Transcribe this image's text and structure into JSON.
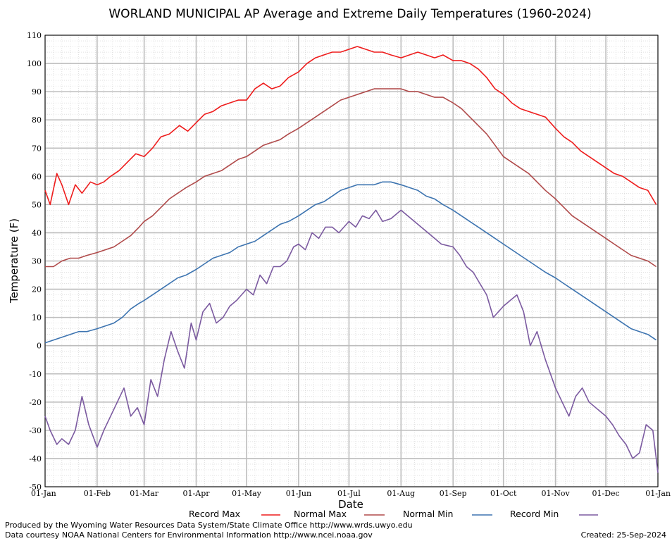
{
  "chart_data": {
    "type": "line",
    "title": "WORLAND MUNICIPAL AP Average and Extreme Daily Temperatures (1960-2024)",
    "xlabel": "Date",
    "ylabel": "Temperature (F)",
    "ylim": [
      -50,
      110
    ],
    "yticks": [
      110,
      100,
      90,
      80,
      70,
      60,
      50,
      40,
      30,
      20,
      10,
      0,
      -10,
      -20,
      -30,
      -40,
      -50
    ],
    "xlim": [
      1,
      366
    ],
    "x_tick_labels": [
      "01-Jan",
      "01-Feb",
      "01-Mar",
      "01-Apr",
      "01-May",
      "01-Jun",
      "01-Jul",
      "01-Aug",
      "01-Sep",
      "01-Oct",
      "01-Nov",
      "01-Dec",
      "01-Jan"
    ],
    "x_tick_days": [
      1,
      32,
      60,
      91,
      121,
      152,
      182,
      213,
      244,
      274,
      305,
      335,
      366
    ],
    "grid": true,
    "legend_position": "bottom",
    "colors": {
      "record_max": "#ee1c1c",
      "normal_max": "#b04a4a",
      "normal_min": "#3d74b0",
      "record_min": "#7b5aa0",
      "grid_major": "#bdbdbd",
      "grid_minor": "#cfcfcf"
    },
    "series": [
      {
        "name": "Record Max",
        "color": "#ee1c1c",
        "x": [
          1,
          4,
          8,
          11,
          15,
          19,
          23,
          28,
          32,
          36,
          40,
          45,
          50,
          55,
          60,
          65,
          70,
          75,
          81,
          86,
          91,
          96,
          101,
          106,
          111,
          116,
          121,
          126,
          131,
          136,
          141,
          146,
          152,
          157,
          162,
          167,
          172,
          177,
          182,
          187,
          192,
          197,
          202,
          207,
          213,
          218,
          223,
          228,
          233,
          238,
          244,
          249,
          254,
          259,
          264,
          269,
          274,
          279,
          284,
          289,
          294,
          299,
          305,
          310,
          315,
          320,
          325,
          330,
          335,
          340,
          345,
          350,
          355,
          360,
          365
        ],
        "values": [
          55,
          50,
          61,
          57,
          50,
          57,
          54,
          58,
          57,
          58,
          60,
          62,
          65,
          68,
          67,
          70,
          74,
          75,
          78,
          76,
          79,
          82,
          83,
          85,
          86,
          87,
          87,
          91,
          93,
          91,
          92,
          95,
          97,
          100,
          102,
          103,
          104,
          104,
          105,
          106,
          105,
          104,
          104,
          103,
          102,
          103,
          104,
          103,
          102,
          103,
          101,
          101,
          100,
          98,
          95,
          91,
          89,
          86,
          84,
          83,
          82,
          81,
          77,
          74,
          72,
          69,
          67,
          65,
          63,
          61,
          60,
          58,
          56,
          55,
          50
        ]
      },
      {
        "name": "Normal Max",
        "color": "#b04a4a",
        "x": [
          1,
          6,
          11,
          16,
          21,
          26,
          32,
          37,
          42,
          47,
          52,
          57,
          60,
          65,
          70,
          75,
          80,
          85,
          91,
          96,
          101,
          106,
          111,
          116,
          121,
          126,
          131,
          136,
          141,
          146,
          152,
          157,
          162,
          167,
          172,
          177,
          182,
          187,
          192,
          197,
          202,
          207,
          213,
          218,
          223,
          228,
          233,
          238,
          244,
          249,
          254,
          259,
          264,
          269,
          274,
          279,
          284,
          289,
          294,
          299,
          305,
          310,
          315,
          320,
          325,
          330,
          335,
          340,
          345,
          350,
          355,
          360,
          365
        ],
        "values": [
          28,
          28,
          30,
          31,
          31,
          32,
          33,
          34,
          35,
          37,
          39,
          42,
          44,
          46,
          49,
          52,
          54,
          56,
          58,
          60,
          61,
          62,
          64,
          66,
          67,
          69,
          71,
          72,
          73,
          75,
          77,
          79,
          81,
          83,
          85,
          87,
          88,
          89,
          90,
          91,
          91,
          91,
          91,
          90,
          90,
          89,
          88,
          88,
          86,
          84,
          81,
          78,
          75,
          71,
          67,
          65,
          63,
          61,
          58,
          55,
          52,
          49,
          46,
          44,
          42,
          40,
          38,
          36,
          34,
          32,
          31,
          30,
          28
        ]
      },
      {
        "name": "Normal Min",
        "color": "#3d74b0",
        "x": [
          1,
          6,
          11,
          16,
          21,
          26,
          32,
          37,
          42,
          47,
          52,
          57,
          60,
          65,
          70,
          75,
          80,
          85,
          91,
          96,
          101,
          106,
          111,
          116,
          121,
          126,
          131,
          136,
          141,
          146,
          152,
          157,
          162,
          167,
          172,
          177,
          182,
          187,
          192,
          197,
          202,
          207,
          213,
          218,
          223,
          228,
          233,
          238,
          244,
          249,
          254,
          259,
          264,
          269,
          274,
          279,
          284,
          289,
          294,
          299,
          305,
          310,
          315,
          320,
          325,
          330,
          335,
          340,
          345,
          350,
          355,
          360,
          365
        ],
        "values": [
          1,
          2,
          3,
          4,
          5,
          5,
          6,
          7,
          8,
          10,
          13,
          15,
          16,
          18,
          20,
          22,
          24,
          25,
          27,
          29,
          31,
          32,
          33,
          35,
          36,
          37,
          39,
          41,
          43,
          44,
          46,
          48,
          50,
          51,
          53,
          55,
          56,
          57,
          57,
          57,
          58,
          58,
          57,
          56,
          55,
          53,
          52,
          50,
          48,
          46,
          44,
          42,
          40,
          38,
          36,
          34,
          32,
          30,
          28,
          26,
          24,
          22,
          20,
          18,
          16,
          14,
          12,
          10,
          8,
          6,
          5,
          4,
          2
        ]
      },
      {
        "name": "Record Min",
        "color": "#7b5aa0",
        "x": [
          1,
          4,
          8,
          11,
          15,
          19,
          23,
          27,
          32,
          36,
          40,
          44,
          48,
          52,
          56,
          60,
          64,
          68,
          72,
          76,
          80,
          84,
          88,
          91,
          95,
          99,
          103,
          107,
          111,
          115,
          121,
          125,
          129,
          133,
          137,
          141,
          145,
          149,
          152,
          156,
          160,
          164,
          168,
          172,
          176,
          182,
          186,
          190,
          194,
          198,
          202,
          207,
          213,
          217,
          221,
          225,
          229,
          233,
          237,
          244,
          248,
          252,
          256,
          260,
          264,
          268,
          274,
          278,
          282,
          286,
          290,
          294,
          299,
          305,
          309,
          313,
          317,
          321,
          325,
          329,
          335,
          339,
          343,
          347,
          351,
          355,
          359,
          363,
          366
        ],
        "values": [
          -25,
          -30,
          -35,
          -33,
          -35,
          -30,
          -18,
          -28,
          -36,
          -30,
          -25,
          -20,
          -15,
          -25,
          -22,
          -28,
          -12,
          -18,
          -5,
          5,
          -2,
          -8,
          8,
          2,
          12,
          15,
          8,
          10,
          14,
          16,
          20,
          18,
          25,
          22,
          28,
          28,
          30,
          35,
          36,
          34,
          40,
          38,
          42,
          42,
          40,
          44,
          42,
          46,
          45,
          48,
          44,
          45,
          48,
          46,
          44,
          42,
          40,
          38,
          36,
          35,
          32,
          28,
          26,
          22,
          18,
          10,
          14,
          16,
          18,
          12,
          0,
          5,
          -5,
          -15,
          -20,
          -25,
          -18,
          -15,
          -20,
          -22,
          -25,
          -28,
          -32,
          -35,
          -40,
          -38,
          -28,
          -30,
          -45
        ]
      }
    ]
  },
  "legend": {
    "labels": [
      "Record Max",
      "Normal Max",
      "Normal Min",
      "Record Min"
    ]
  },
  "footer": {
    "produced_by": "Produced by the Wyoming Water Resources Data System/State Climate Office http://www.wrds.uwyo.edu",
    "courtesy": "Data courtesy NOAA National Centers for Environmental Information http://www.ncei.noaa.gov",
    "created": "Created:  25-Sep-2024"
  }
}
